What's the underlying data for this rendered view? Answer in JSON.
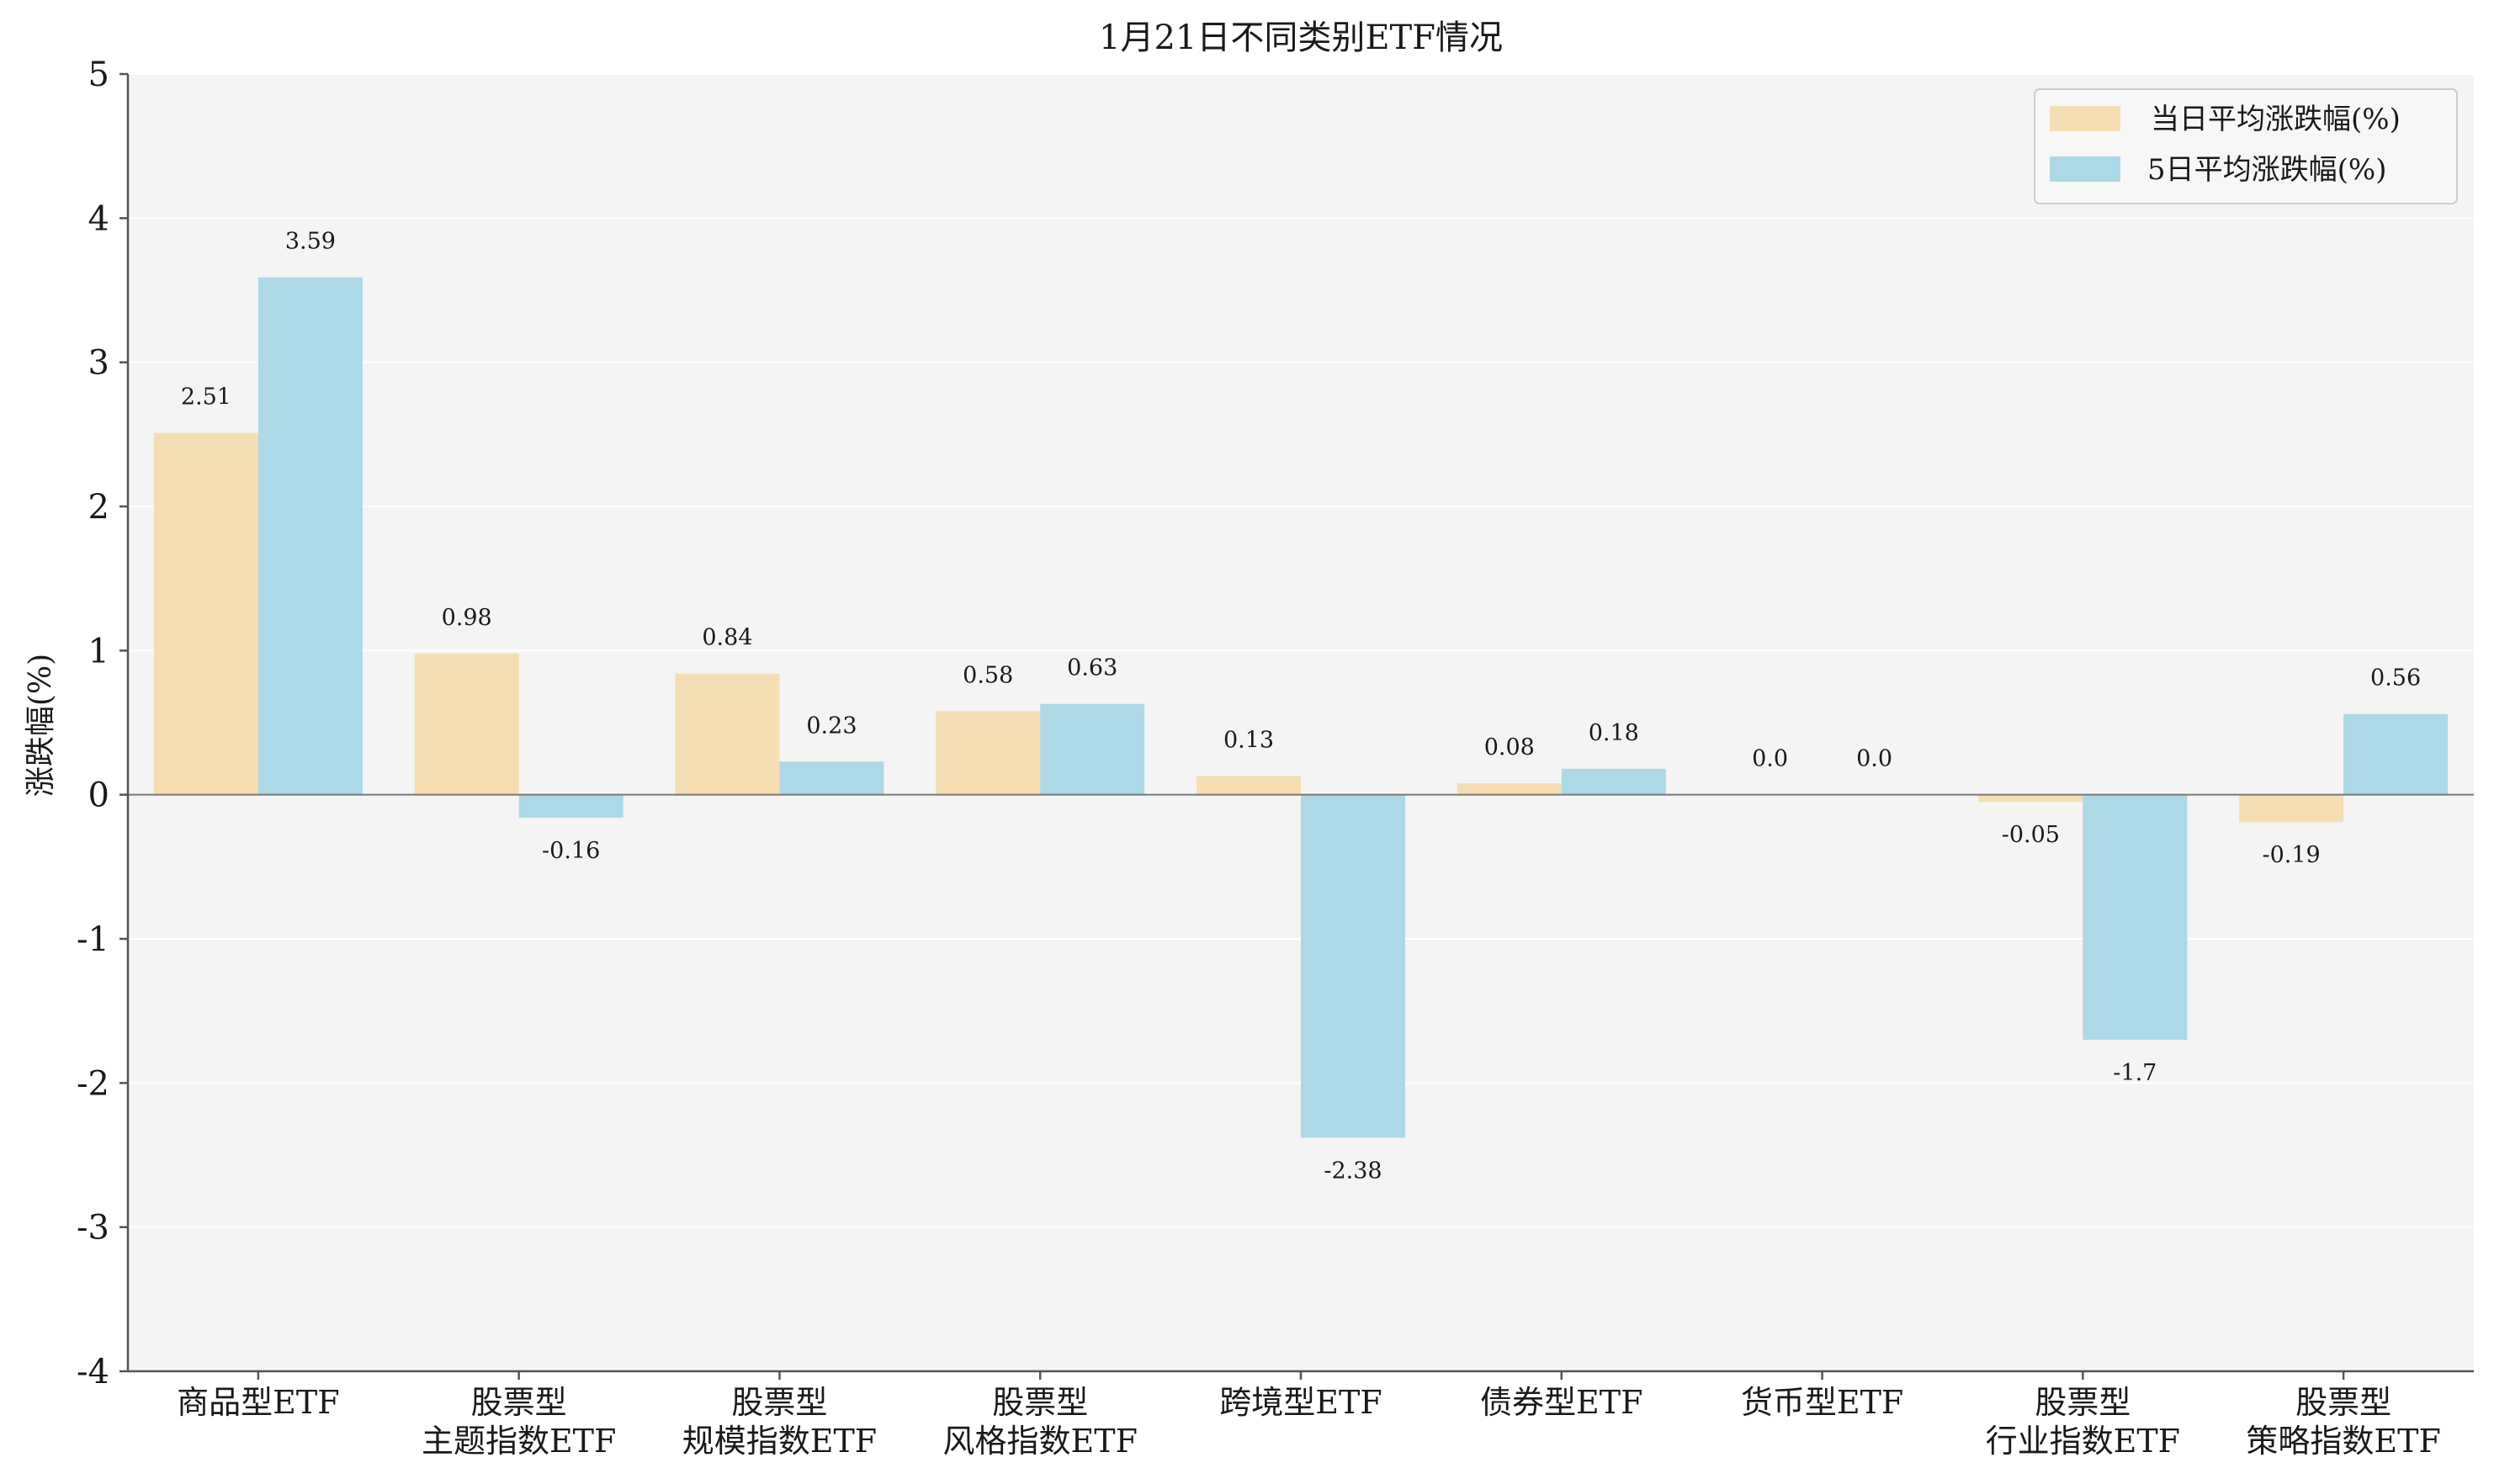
{
  "chart_data": {
    "type": "bar",
    "title": "1月21日不同类别ETF情况",
    "xlabel": "",
    "ylabel": "涨跌幅(%)",
    "ylim": [
      -4,
      5
    ],
    "yticks": [
      5,
      4,
      3,
      2,
      1,
      0,
      -1,
      -2,
      -3,
      -4
    ],
    "grid": true,
    "legend_position": "top-right",
    "categories": [
      [
        "商品型ETF"
      ],
      [
        "股票型",
        "主题指数ETF"
      ],
      [
        "股票型",
        "规模指数ETF"
      ],
      [
        "股票型",
        "风格指数ETF"
      ],
      [
        "跨境型ETF"
      ],
      [
        "债券型ETF"
      ],
      [
        "货币型ETF"
      ],
      [
        "股票型",
        "行业指数ETF"
      ],
      [
        "股票型",
        "策略指数ETF"
      ]
    ],
    "series": [
      {
        "name": "当日平均涨跌幅(%)",
        "color": "#f5deb3",
        "values": [
          2.51,
          0.98,
          0.84,
          0.58,
          0.13,
          0.08,
          0.0,
          -0.05,
          -0.19
        ],
        "labels": [
          "2.51",
          "0.98",
          "0.84",
          "0.58",
          "0.13",
          "0.08",
          "0.0",
          "-0.05",
          "-0.19"
        ]
      },
      {
        "name": "5日平均涨跌幅(%)",
        "color": "#add8e6",
        "values": [
          3.59,
          -0.16,
          0.23,
          0.63,
          -2.38,
          0.18,
          0.0,
          -1.7,
          0.56
        ],
        "labels": [
          "3.59",
          "-0.16",
          "0.23",
          "0.63",
          "-2.38",
          "0.18",
          "0.0",
          "-1.7",
          "0.56"
        ]
      }
    ]
  }
}
